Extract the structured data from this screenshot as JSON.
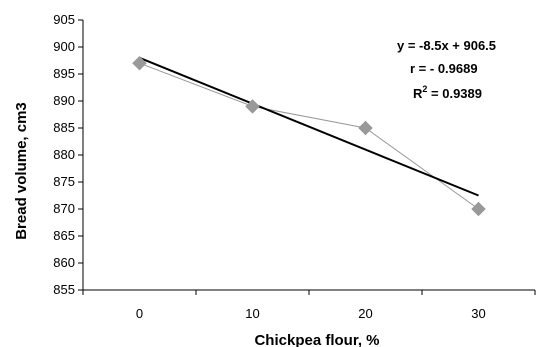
{
  "chart_data": {
    "type": "scatter",
    "title": "",
    "xlabel": "Chickpea flour, %",
    "ylabel": "Bread volume, cm3",
    "categories": [
      "0",
      "10",
      "20",
      "30"
    ],
    "x": [
      0,
      10,
      20,
      30
    ],
    "yticks": [
      "855",
      "860",
      "865",
      "870",
      "875",
      "880",
      "885",
      "890",
      "895",
      "900",
      "905"
    ],
    "ylim": [
      855,
      905
    ],
    "grid": false,
    "legend": "none",
    "series": [
      {
        "values": [
          897,
          889,
          885,
          870
        ],
        "marker": "diamond",
        "marker_color": "#999999",
        "line_color": "#999999",
        "connected": true
      }
    ],
    "trendline": {
      "type": "linear",
      "slope": -8.5,
      "intercept": 906.5,
      "color": "#000000"
    },
    "annotations": {
      "equation": "y = -8.5x + 906.5",
      "r": "r = - 0.9689",
      "r2_prefix": "R",
      "r2_sup": "2",
      "r2_suffix": " = 0.9389"
    }
  }
}
